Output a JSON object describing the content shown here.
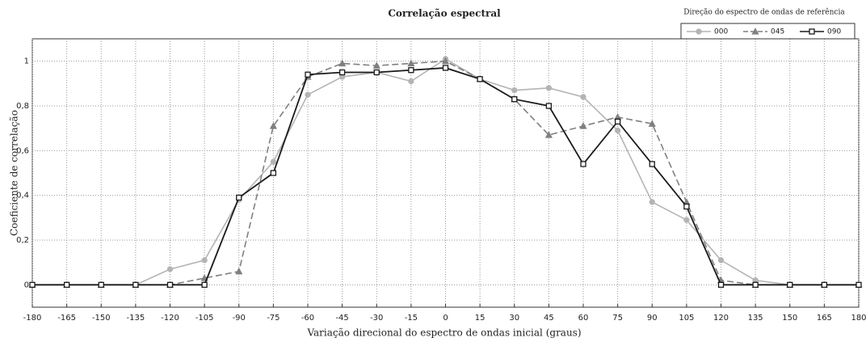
{
  "chart_data": {
    "type": "line",
    "title": "Correlação espectral",
    "xlabel": "Variação direcional do espectro de ondas inicial (graus)",
    "ylabel": "Coeficiente de correlação",
    "legend_title": "Direção do espectro de ondas de referência",
    "legend_position": "upper right",
    "grid": true,
    "x": [
      -180,
      -165,
      -150,
      -135,
      -120,
      -105,
      -90,
      -75,
      -60,
      -45,
      -30,
      -15,
      0,
      15,
      30,
      45,
      60,
      75,
      90,
      105,
      120,
      135,
      150,
      165,
      180
    ],
    "xlim": [
      -180,
      180
    ],
    "xticks": [
      -180,
      -165,
      -150,
      -135,
      -120,
      -105,
      -90,
      -75,
      -60,
      -45,
      -30,
      -15,
      0,
      15,
      30,
      45,
      60,
      75,
      90,
      105,
      120,
      135,
      150,
      165,
      180
    ],
    "ylim": [
      -0.1,
      1.1
    ],
    "yticks": [
      0,
      {
        "value": 0.2,
        "label": "0,2"
      },
      {
        "value": 0.4,
        "label": "0,4"
      },
      {
        "value": 0.6,
        "label": "0,6"
      },
      {
        "value": 0.8,
        "label": "0,8"
      },
      1
    ],
    "series": [
      {
        "name": "000",
        "color": "#b4b4b4",
        "marker": "circle",
        "linestyle": "solid",
        "values": [
          0,
          0,
          0,
          0,
          0.07,
          0.11,
          0.38,
          0.55,
          0.85,
          0.93,
          0.95,
          0.91,
          1.01,
          0.92,
          0.87,
          0.88,
          0.84,
          0.69,
          0.37,
          0.29,
          0.11,
          0.02,
          0,
          0,
          0
        ]
      },
      {
        "name": "045",
        "color": "#808080",
        "marker": "triangle",
        "linestyle": "dashed",
        "values": [
          0,
          0,
          0,
          0,
          0,
          0.03,
          0.06,
          0.71,
          0.93,
          0.99,
          0.98,
          0.99,
          1.0,
          0.92,
          0.83,
          0.67,
          0.71,
          0.75,
          0.72,
          0.37,
          0.02,
          0,
          0,
          0,
          0
        ]
      },
      {
        "name": "090",
        "color": "#1a1a1a",
        "marker": "square",
        "linestyle": "solid",
        "values": [
          0,
          0,
          0,
          0,
          0,
          0,
          0.39,
          0.5,
          0.94,
          0.95,
          0.95,
          0.96,
          0.97,
          0.92,
          0.83,
          0.8,
          0.54,
          0.73,
          0.54,
          0.35,
          0,
          0,
          0,
          0,
          0
        ]
      }
    ]
  }
}
